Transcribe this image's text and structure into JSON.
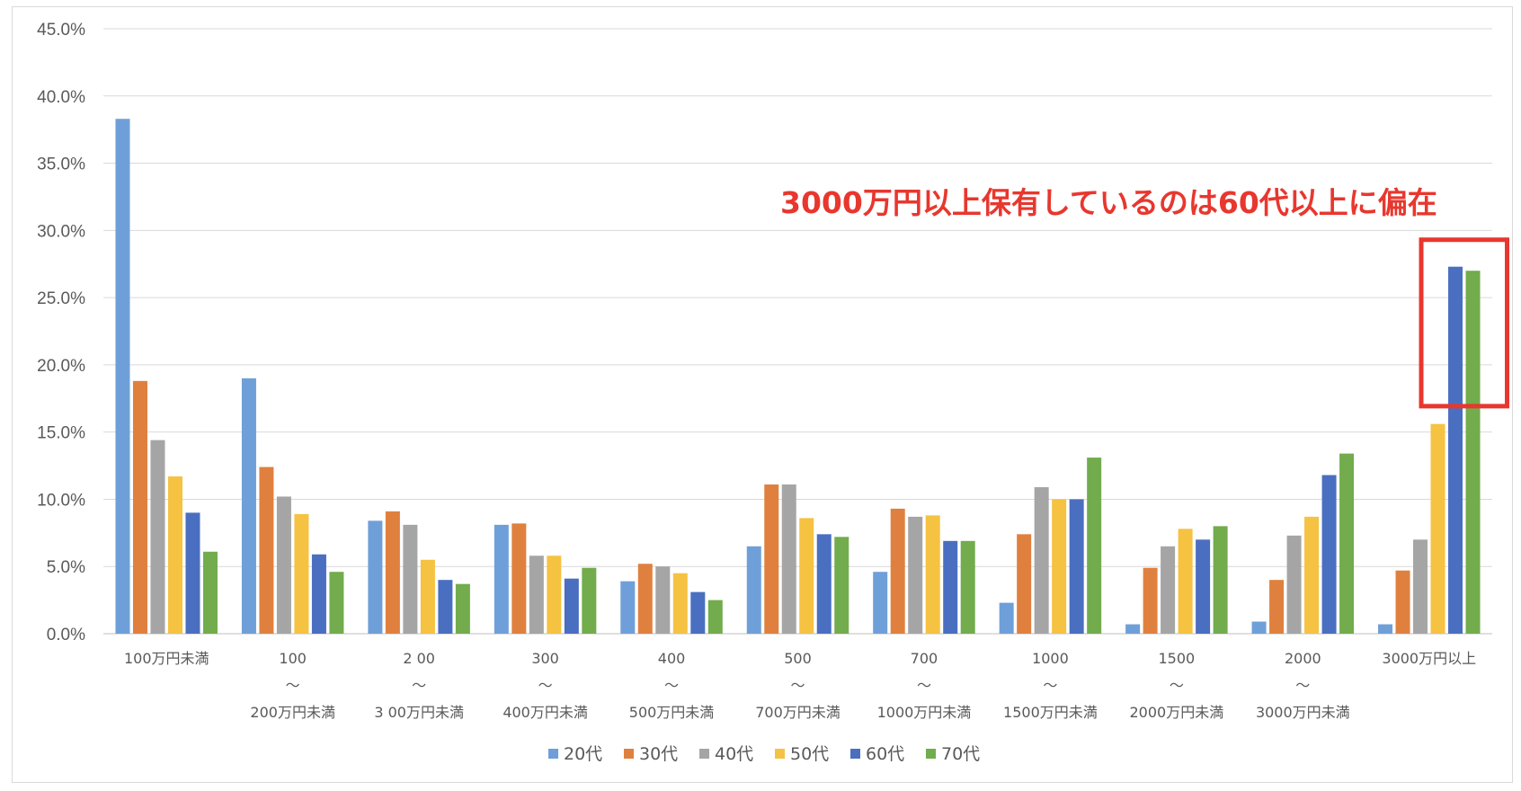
{
  "chart_data": {
    "type": "bar",
    "categories": [
      [
        "100万円未満"
      ],
      [
        "100",
        "～",
        "200万円未満"
      ],
      [
        "2 00",
        "～",
        "3 00万円未満"
      ],
      [
        "300",
        "～",
        "400万円未満"
      ],
      [
        "400",
        "～",
        "500万円未満"
      ],
      [
        "500",
        "～",
        "700万円未満"
      ],
      [
        "700",
        "～",
        "1000万円未満"
      ],
      [
        "1000",
        "～",
        "1500万円未満"
      ],
      [
        "1500",
        "～",
        "2000万円未満"
      ],
      [
        "2000",
        "～",
        "3000万円未満"
      ],
      [
        "3000万円以上"
      ]
    ],
    "series": [
      {
        "name": "20代",
        "color": "#6f9fd8",
        "values": [
          38.3,
          19.0,
          8.4,
          8.1,
          3.9,
          6.5,
          4.6,
          2.3,
          0.7,
          0.9,
          0.7
        ]
      },
      {
        "name": "30代",
        "color": "#e0803f",
        "values": [
          18.8,
          12.4,
          9.1,
          8.2,
          5.2,
          11.1,
          9.3,
          7.4,
          4.9,
          4.0,
          4.7
        ]
      },
      {
        "name": "40代",
        "color": "#a5a5a5",
        "values": [
          14.4,
          10.2,
          8.1,
          5.8,
          5.0,
          11.1,
          8.7,
          10.9,
          6.5,
          7.3,
          7.0
        ]
      },
      {
        "name": "50代",
        "color": "#f5c242",
        "values": [
          11.7,
          8.9,
          5.5,
          5.8,
          4.5,
          8.6,
          8.8,
          10.0,
          7.8,
          8.7,
          15.6
        ]
      },
      {
        "name": "60代",
        "color": "#4a6fc1",
        "values": [
          9.0,
          5.9,
          4.0,
          4.1,
          3.1,
          7.4,
          6.9,
          10.0,
          7.0,
          11.8,
          27.3
        ]
      },
      {
        "name": "70代",
        "color": "#72ac4d",
        "values": [
          6.1,
          4.6,
          3.7,
          4.9,
          2.5,
          7.2,
          6.9,
          13.1,
          8.0,
          13.4,
          27.0
        ]
      }
    ],
    "yticks": [
      "0.0%",
      "5.0%",
      "10.0%",
      "15.0%",
      "20.0%",
      "25.0%",
      "30.0%",
      "35.0%",
      "40.0%",
      "45.0%"
    ],
    "ylim": [
      0,
      45
    ],
    "grid": true,
    "legend_position": "bottom",
    "annotation": {
      "text": "3000万円以上保有しているのは60代以上に偏在",
      "color": "#e8372e"
    },
    "highlight": {
      "category_index": 10,
      "series": [
        "60代",
        "70代"
      ],
      "color": "#e8372e"
    }
  }
}
